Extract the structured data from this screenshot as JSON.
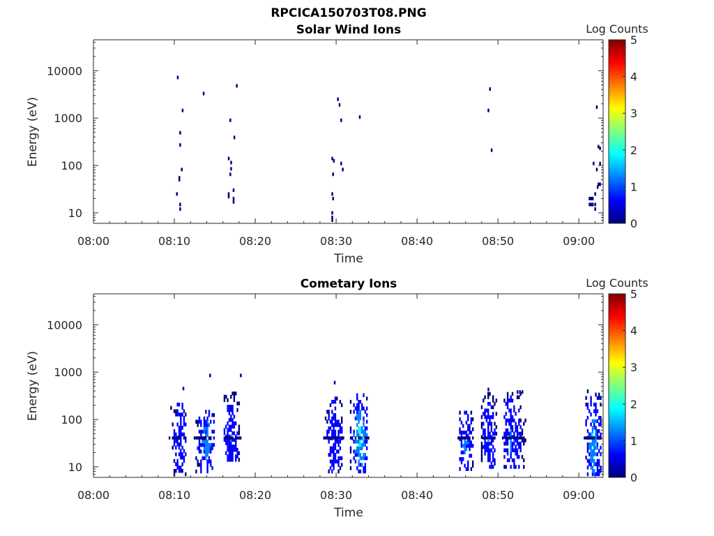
{
  "figure": {
    "title": "RPCICA150703T08.PNG"
  },
  "colorscale": [
    "#00007f",
    "#0000ff",
    "#007fff",
    "#00ffff",
    "#7fff7f",
    "#ffff00",
    "#ff7f00",
    "#ff0000",
    "#7f0000"
  ],
  "chart_data": [
    {
      "type": "heatmap",
      "title": "Solar Wind Ions",
      "xlabel": "Time",
      "ylabel": "Energy (eV)",
      "colorbar_label": "Log Counts",
      "x_ticks": [
        "08:00",
        "08:10",
        "08:20",
        "08:30",
        "08:40",
        "08:50",
        "09:00"
      ],
      "y_ticks": [
        "10",
        "100",
        "1000",
        "10000"
      ],
      "c_ticks": [
        "0",
        "1",
        "2",
        "3",
        "4",
        "5"
      ],
      "x_range_min": [
        0,
        63
      ],
      "y_scale": "log",
      "y_range_eV": [
        6,
        45000
      ],
      "c_range": [
        0,
        5
      ],
      "points": [
        [
          10.4,
          7200,
          0.3
        ],
        [
          11.0,
          1450,
          0.3
        ],
        [
          10.7,
          490,
          0.3
        ],
        [
          10.7,
          270,
          0.3
        ],
        [
          10.9,
          82,
          0.3
        ],
        [
          10.6,
          55,
          0.3
        ],
        [
          10.6,
          50,
          0.3
        ],
        [
          10.3,
          25,
          0.3
        ],
        [
          10.7,
          15,
          0.3
        ],
        [
          10.7,
          12,
          0.3
        ],
        [
          13.6,
          3300,
          0.3
        ],
        [
          16.9,
          900,
          0.3
        ],
        [
          17.7,
          4800,
          0.3
        ],
        [
          17.4,
          390,
          0.3
        ],
        [
          16.7,
          140,
          0.3
        ],
        [
          17.0,
          115,
          0.3
        ],
        [
          17.0,
          85,
          0.3
        ],
        [
          16.9,
          65,
          0.3
        ],
        [
          16.7,
          25,
          0.3
        ],
        [
          16.7,
          22,
          0.3
        ],
        [
          17.3,
          30,
          0.3
        ],
        [
          17.3,
          20,
          0.3
        ],
        [
          17.3,
          17,
          0.3
        ],
        [
          30.2,
          2500,
          0.3
        ],
        [
          30.4,
          1900,
          0.3
        ],
        [
          30.6,
          900,
          0.3
        ],
        [
          29.5,
          140,
          0.3
        ],
        [
          29.7,
          125,
          0.3
        ],
        [
          30.6,
          110,
          0.3
        ],
        [
          30.8,
          82,
          0.3
        ],
        [
          29.6,
          65,
          0.3
        ],
        [
          29.5,
          25,
          0.3
        ],
        [
          29.6,
          20,
          0.3
        ],
        [
          29.5,
          10,
          0.3
        ],
        [
          29.5,
          8,
          0.3
        ],
        [
          29.5,
          7,
          0.3
        ],
        [
          32.9,
          1050,
          0.3
        ],
        [
          49.0,
          4100,
          0.3
        ],
        [
          48.8,
          1450,
          0.3
        ],
        [
          49.2,
          210,
          0.3
        ],
        [
          62.2,
          1700,
          0.3
        ],
        [
          62.4,
          250,
          0.3
        ],
        [
          62.6,
          230,
          0.3
        ],
        [
          61.8,
          110,
          0.3
        ],
        [
          62.6,
          110,
          0.3
        ],
        [
          62.2,
          82,
          0.3
        ],
        [
          62.4,
          40,
          0.3
        ],
        [
          62.6,
          40,
          0.3
        ],
        [
          62.3,
          35,
          0.3
        ],
        [
          62.0,
          25,
          0.3
        ],
        [
          61.3,
          20,
          0.3
        ],
        [
          61.5,
          20,
          0.3
        ],
        [
          61.7,
          20,
          0.3
        ],
        [
          61.3,
          15,
          0.3
        ],
        [
          61.5,
          15,
          0.3
        ],
        [
          61.7,
          15,
          0.3
        ],
        [
          62.0,
          15,
          0.3
        ],
        [
          62.0,
          12,
          0.3
        ]
      ]
    },
    {
      "type": "heatmap",
      "title": "Cometary Ions",
      "xlabel": "Time",
      "ylabel": "Energy (eV)",
      "colorbar_label": "Log Counts",
      "x_ticks": [
        "08:00",
        "08:10",
        "08:20",
        "08:30",
        "08:40",
        "08:50",
        "09:00"
      ],
      "y_ticks": [
        "10",
        "100",
        "1000",
        "10000"
      ],
      "c_ticks": [
        "0",
        "1",
        "2",
        "3",
        "4",
        "5"
      ],
      "x_range_min": [
        0,
        63
      ],
      "y_scale": "log",
      "y_range_eV": [
        6,
        45000
      ],
      "c_range": [
        0,
        5
      ],
      "clusters": [
        {
          "t0": 9.6,
          "t1": 11.3,
          "e_lo": 7,
          "e_hi": 220,
          "core_t": 10.7,
          "core_e": 40,
          "level": 0.8
        },
        {
          "t0": 12.7,
          "t1": 14.8,
          "e_lo": 8,
          "e_hi": 170,
          "core_t": 14.0,
          "core_e": 35,
          "level": 1.4
        },
        {
          "t0": 16.2,
          "t1": 18.0,
          "e_lo": 12,
          "e_hi": 400,
          "core_t": 17.0,
          "core_e": 40,
          "level": 0.9
        },
        {
          "t0": 28.7,
          "t1": 30.7,
          "e_lo": 8,
          "e_hi": 300,
          "core_t": 29.8,
          "core_e": 40,
          "level": 0.8
        },
        {
          "t0": 31.8,
          "t1": 33.9,
          "e_lo": 8,
          "e_hi": 350,
          "core_t": 33.0,
          "core_e": 40,
          "level": 1.9
        },
        {
          "t0": 45.3,
          "t1": 47.1,
          "e_lo": 9,
          "e_hi": 160,
          "core_t": 46.0,
          "core_e": 30,
          "level": 1.1
        },
        {
          "t0": 48.0,
          "t1": 49.8,
          "e_lo": 10,
          "e_hi": 400,
          "core_t": 48.9,
          "core_e": 40,
          "level": 0.8
        },
        {
          "t0": 50.8,
          "t1": 53.3,
          "e_lo": 10,
          "e_hi": 380,
          "core_t": 51.7,
          "core_e": 40,
          "level": 1.0
        },
        {
          "t0": 60.9,
          "t1": 62.7,
          "e_lo": 7,
          "e_hi": 420,
          "core_t": 61.8,
          "core_e": 30,
          "level": 1.7
        }
      ],
      "points": [
        [
          14.4,
          850,
          0.3
        ],
        [
          18.2,
          850,
          0.3
        ],
        [
          29.8,
          600,
          0.3
        ],
        [
          11.1,
          450,
          0.3
        ],
        [
          48.8,
          430,
          0.3
        ],
        [
          53.0,
          380,
          0.3
        ],
        [
          52.7,
          380,
          0.3
        ],
        [
          52.4,
          380,
          0.3
        ]
      ]
    }
  ]
}
